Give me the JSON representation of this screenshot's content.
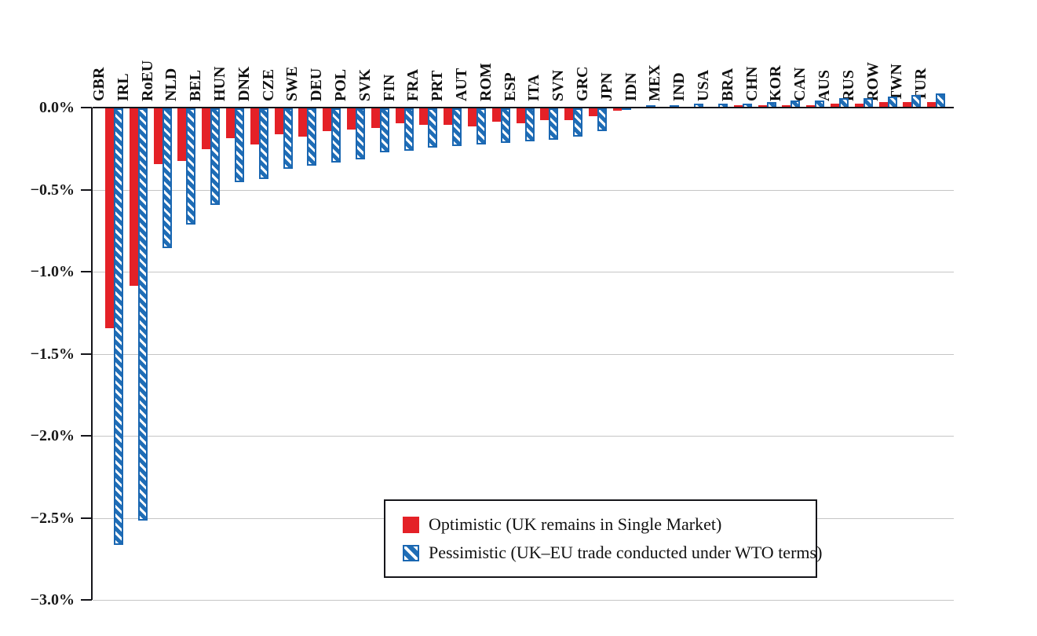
{
  "chart_data": {
    "type": "bar",
    "title": "",
    "xlabel": "",
    "ylabel": "",
    "y_ticks": [
      "0.0%",
      "−0.5%",
      "−1.0%",
      "−1.5%",
      "−2.0%",
      "−2.5%",
      "−3.0%"
    ],
    "ylim": [
      -3.0,
      0.1
    ],
    "grid": true,
    "legend_position": "inside-bottom-center-box",
    "categories": [
      "GBR",
      "IRL",
      "RoEU",
      "NLD",
      "BEL",
      "HUN",
      "DNK",
      "CZE",
      "SWE",
      "DEU",
      "POL",
      "SVK",
      "FIN",
      "FRA",
      "PRT",
      "AUT",
      "ROM",
      "ESP",
      "ITA",
      "SVN",
      "GRC",
      "JPN",
      "IDN",
      "MEX",
      "IND",
      "USA",
      "BRA",
      "CHN",
      "KOR",
      "CAN",
      "AUS",
      "RUS",
      "ROW",
      "TWN",
      "TUR"
    ],
    "series": [
      {
        "name": "Optimistic (UK remains in Single Market)",
        "style": "solid",
        "color": "#e42127",
        "values": [
          -1.34,
          -1.08,
          -0.34,
          -0.32,
          -0.25,
          -0.18,
          -0.22,
          -0.16,
          -0.17,
          -0.14,
          -0.13,
          -0.12,
          -0.09,
          -0.1,
          -0.1,
          -0.11,
          -0.08,
          -0.09,
          -0.07,
          -0.07,
          -0.05,
          -0.01,
          0.01,
          0.01,
          0.01,
          0.01,
          0.02,
          0.02,
          0.02,
          0.02,
          0.03,
          0.03,
          0.04,
          0.04,
          0.04
        ]
      },
      {
        "name": "Pessimistic (UK–EU trade conducted under WTO terms)",
        "style": "hatched",
        "color": "#1f6db6",
        "values": [
          -2.66,
          -2.51,
          -0.85,
          -0.71,
          -0.59,
          -0.45,
          -0.43,
          -0.37,
          -0.35,
          -0.33,
          -0.31,
          -0.27,
          -0.26,
          -0.24,
          -0.23,
          -0.22,
          -0.21,
          -0.2,
          -0.19,
          -0.17,
          -0.14,
          0.01,
          0.02,
          0.02,
          0.03,
          0.03,
          0.03,
          0.04,
          0.05,
          0.05,
          0.06,
          0.06,
          0.07,
          0.08,
          0.09
        ]
      }
    ],
    "axis_color": "#15151a",
    "gridline_color": "#c5c5c5"
  }
}
